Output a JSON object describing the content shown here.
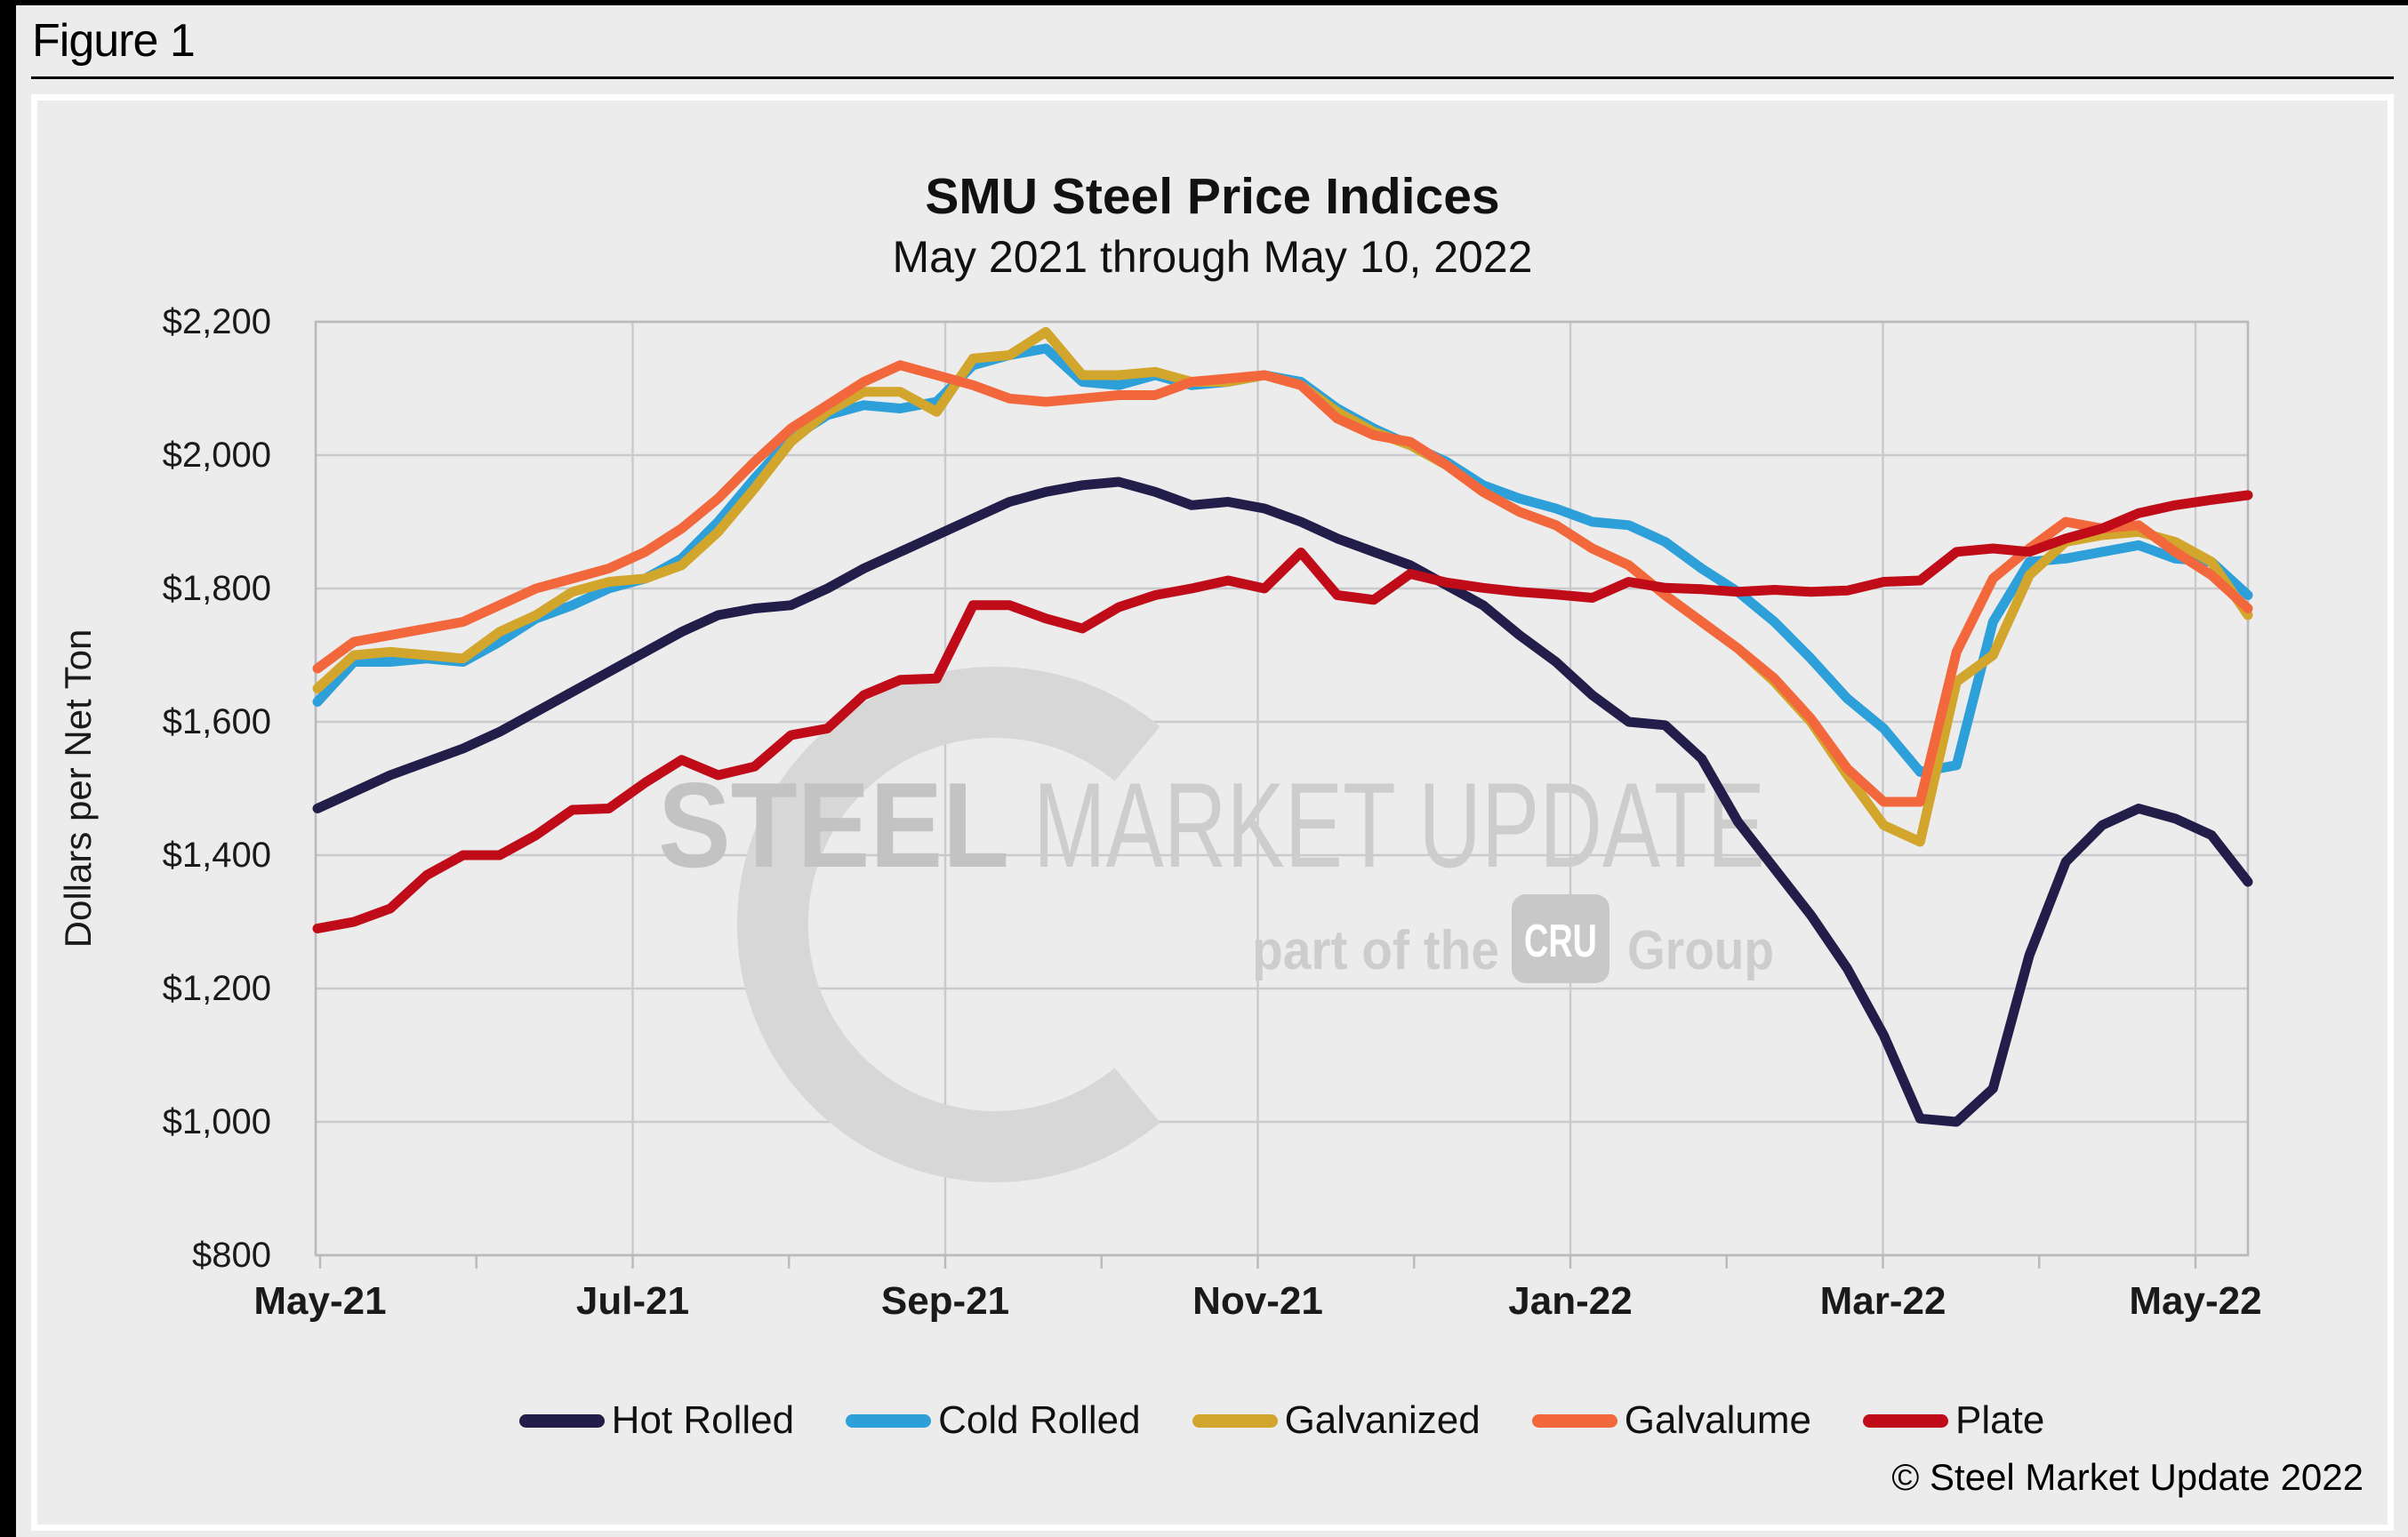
{
  "figure_label": "Figure 1",
  "copyright": "© Steel Market Update 2022",
  "watermark": {
    "brand_bold": "STEEL",
    "brand_light": "MARKET UPDATE",
    "tagline_prefix": "part of the",
    "tagline_badge": "CRU",
    "tagline_suffix": "Group"
  },
  "colors": {
    "background": "#ececec",
    "grid": "#c9cacd",
    "frame": "#b9babd",
    "watermark_shape": "#d7d7d7",
    "watermark_text_bold": "#c3c3c3",
    "watermark_text_light": "#cdcdcd",
    "watermark_badge": "#c8c8c8"
  },
  "chart_data": {
    "type": "line",
    "title": "SMU Steel Price Indices",
    "subtitle": "May 2021 through May 10, 2022",
    "xlabel": "",
    "ylabel": "Dollars per Net Ton",
    "ylim": [
      800,
      2200
    ],
    "ytick_values": [
      800,
      1000,
      1200,
      1400,
      1600,
      1800,
      2000,
      2200
    ],
    "ytick_labels": [
      "$800",
      "$1,000",
      "$1,200",
      "$1,400",
      "$1,600",
      "$1,800",
      "$2,000",
      "$2,200"
    ],
    "xtick_labels": [
      "May-21",
      "Jul-21",
      "Sep-21",
      "Nov-21",
      "Jan-22",
      "Mar-22",
      "May-22"
    ],
    "frequency": "weekly",
    "grid": {
      "horizontal": true,
      "vertical": "every 2 months"
    },
    "legend_position": "bottom",
    "series": [
      {
        "name": "Hot Rolled",
        "color": "#221d49",
        "values": [
          1470,
          1495,
          1520,
          1540,
          1560,
          1585,
          1615,
          1645,
          1675,
          1705,
          1735,
          1760,
          1770,
          1775,
          1800,
          1830,
          1855,
          1880,
          1905,
          1930,
          1945,
          1955,
          1960,
          1945,
          1925,
          1930,
          1920,
          1900,
          1875,
          1855,
          1835,
          1805,
          1775,
          1730,
          1690,
          1640,
          1600,
          1595,
          1545,
          1450,
          1380,
          1310,
          1230,
          1130,
          1005,
          1000,
          1050,
          1250,
          1390,
          1445,
          1470,
          1455,
          1430,
          1360
        ]
      },
      {
        "name": "Cold Rolled",
        "color": "#2da0da",
        "values": [
          1630,
          1690,
          1690,
          1695,
          1690,
          1720,
          1755,
          1775,
          1800,
          1815,
          1845,
          1900,
          1965,
          2025,
          2060,
          2075,
          2070,
          2080,
          2135,
          2150,
          2160,
          2110,
          2105,
          2120,
          2105,
          2110,
          2120,
          2110,
          2070,
          2040,
          2015,
          1990,
          1955,
          1935,
          1920,
          1900,
          1895,
          1870,
          1830,
          1795,
          1750,
          1695,
          1635,
          1590,
          1525,
          1535,
          1750,
          1840,
          1845,
          1855,
          1865,
          1845,
          1840,
          1790
        ]
      },
      {
        "name": "Galvanized",
        "color": "#d2a62c",
        "values": [
          1650,
          1700,
          1705,
          1700,
          1695,
          1735,
          1760,
          1795,
          1810,
          1815,
          1835,
          1885,
          1950,
          2020,
          2065,
          2095,
          2095,
          2065,
          2145,
          2150,
          2185,
          2120,
          2120,
          2125,
          2110,
          2110,
          2120,
          2105,
          2065,
          2035,
          2015,
          1985,
          1945,
          1915,
          1895,
          1860,
          1835,
          1790,
          1750,
          1710,
          1660,
          1600,
          1520,
          1445,
          1420,
          1660,
          1700,
          1820,
          1870,
          1880,
          1885,
          1870,
          1840,
          1760
        ]
      },
      {
        "name": "Galvalume",
        "color": "#f2683c",
        "values": [
          1680,
          1720,
          1730,
          1740,
          1750,
          1775,
          1800,
          1815,
          1830,
          1855,
          1890,
          1935,
          1990,
          2040,
          2075,
          2110,
          2135,
          2120,
          2105,
          2085,
          2080,
          2085,
          2090,
          2090,
          2110,
          2115,
          2120,
          2105,
          2055,
          2030,
          2020,
          1985,
          1945,
          1915,
          1895,
          1860,
          1835,
          1790,
          1750,
          1710,
          1665,
          1605,
          1530,
          1480,
          1480,
          1705,
          1815,
          1860,
          1900,
          1890,
          1895,
          1855,
          1820,
          1770
        ]
      },
      {
        "name": "Plate",
        "color": "#c00c18",
        "values": [
          1290,
          1300,
          1320,
          1370,
          1400,
          1400,
          1430,
          1468,
          1470,
          1509,
          1543,
          1520,
          1533,
          1580,
          1590,
          1640,
          1663,
          1665,
          1775,
          1775,
          1755,
          1740,
          1772,
          1790,
          1800,
          1812,
          1800,
          1854,
          1790,
          1783,
          1822,
          1809,
          1801,
          1795,
          1791,
          1786,
          1810,
          1801,
          1799,
          1795,
          1798,
          1795,
          1797,
          1810,
          1812,
          1855,
          1860,
          1855,
          1875,
          1890,
          1913,
          1925,
          1933,
          1940
        ]
      }
    ]
  }
}
